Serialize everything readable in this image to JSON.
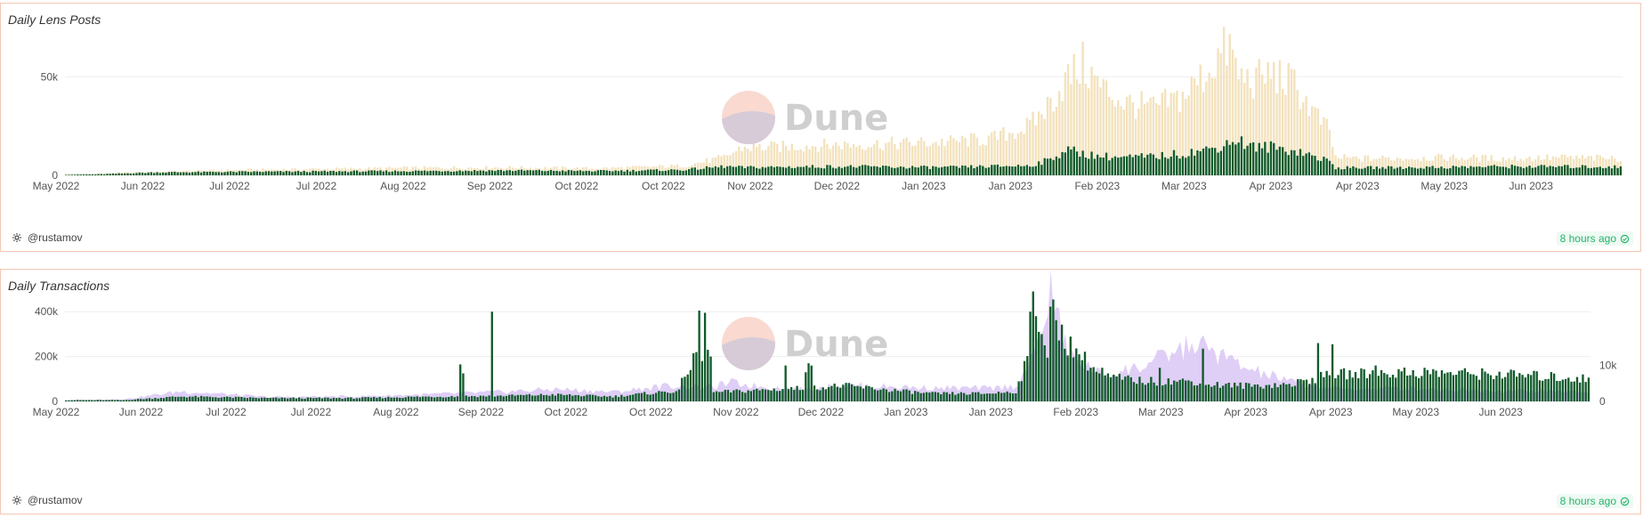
{
  "footer": {
    "author": "@rustamov",
    "updated": "8 hours ago"
  },
  "watermark": "Dune",
  "colors": {
    "green": "#0f5a2a",
    "cream": "#f3e2bd",
    "lavender": "#d9c5f5",
    "border": "#f3c7b4",
    "grid": "#eeeeee"
  },
  "chart_data": [
    {
      "type": "bar",
      "title": "Daily Lens Posts",
      "ylim": [
        0,
        70000
      ],
      "yticks": [
        {
          "value": 0,
          "label": "0"
        },
        {
          "value": 50000,
          "label": "50k"
        }
      ],
      "xtick_labels": [
        "May 2022",
        "Jun 2022",
        "Jul 2022",
        "Jul 2022",
        "Aug 2022",
        "Sep 2022",
        "Oct 2022",
        "Oct 2022",
        "Nov 2022",
        "Dec 2022",
        "Jan 2023",
        "Jan 2023",
        "Feb 2023",
        "Mar 2023",
        "Apr 2023",
        "Apr 2023",
        "May 2023",
        "Jun 2023"
      ],
      "start_date": "2022-05-18",
      "days": 411,
      "grid": true,
      "series": [
        {
          "kind": "bar",
          "color": "#f3e2bd",
          "anchors": [
            [
              0,
              500
            ],
            [
              10,
              800
            ],
            [
              30,
              1800
            ],
            [
              60,
              2800
            ],
            [
              120,
              3800
            ],
            [
              150,
              4000
            ],
            [
              180,
              3500
            ],
            [
              210,
              4800
            ],
            [
              224,
              9000
            ],
            [
              230,
              14000
            ],
            [
              245,
              14500
            ],
            [
              260,
              15500
            ],
            [
              280,
              16000
            ],
            [
              300,
              17000
            ],
            [
              315,
              18500
            ],
            [
              328,
              25000
            ],
            [
              334,
              35000
            ],
            [
              340,
              48000
            ],
            [
              346,
              56000
            ],
            [
              352,
              45000
            ],
            [
              360,
              37000
            ],
            [
              370,
              34000
            ],
            [
              380,
              40000
            ],
            [
              388,
              52000
            ],
            [
              392,
              60000
            ],
            [
              396,
              65000
            ],
            [
              399,
              50000
            ],
            [
              405,
              48000
            ],
            [
              410,
              52000
            ],
            [
              418,
              46000
            ],
            [
              424,
              33000
            ],
            [
              430,
              22000
            ],
            [
              432,
              9000
            ],
            [
              440,
              8500
            ],
            [
              470,
              9000
            ],
            [
              490,
              8500
            ],
            [
              510,
              9000
            ],
            [
              530,
              8500
            ]
          ]
        },
        {
          "kind": "bar",
          "color": "#0f5a2a",
          "anchors": [
            [
              0,
              300
            ],
            [
              10,
              500
            ],
            [
              30,
              1500
            ],
            [
              60,
              1800
            ],
            [
              120,
              2200
            ],
            [
              150,
              2500
            ],
            [
              180,
              2200
            ],
            [
              210,
              2800
            ],
            [
              224,
              4500
            ],
            [
              230,
              4000
            ],
            [
              260,
              4500
            ],
            [
              300,
              4000
            ],
            [
              328,
              5000
            ],
            [
              335,
              8000
            ],
            [
              340,
              13000
            ],
            [
              350,
              10000
            ],
            [
              360,
              9000
            ],
            [
              370,
              9500
            ],
            [
              380,
              11000
            ],
            [
              390,
              13500
            ],
            [
              398,
              18000
            ],
            [
              405,
              14000
            ],
            [
              410,
              14500
            ],
            [
              420,
              12000
            ],
            [
              430,
              7000
            ],
            [
              432,
              3800
            ],
            [
              460,
              4000
            ],
            [
              490,
              4500
            ],
            [
              530,
              4300
            ]
          ]
        }
      ]
    },
    {
      "type": "bar",
      "title": "Daily Transactions",
      "ylim": [
        0,
        500000
      ],
      "yticks": [
        {
          "value": 0,
          "label": "0"
        },
        {
          "value": 200000,
          "label": "200k"
        },
        {
          "value": 400000,
          "label": "400k"
        }
      ],
      "y2lim": [
        0,
        31000
      ],
      "y2ticks": [
        {
          "value": 0,
          "label": "0"
        },
        {
          "value": 10000,
          "label": "10k"
        }
      ],
      "xtick_labels": [
        "May 2022",
        "Jun 2022",
        "Jul 2022",
        "Jul 2022",
        "Aug 2022",
        "Sep 2022",
        "Oct 2022",
        "Oct 2022",
        "Nov 2022",
        "Dec 2022",
        "Jan 2023",
        "Jan 2023",
        "Feb 2023",
        "Mar 2023",
        "Apr 2023",
        "Apr 2023",
        "May 2023",
        "Jun 2023"
      ],
      "start_date": "2022-05-18",
      "days": 411,
      "grid": true,
      "series": [
        {
          "kind": "area",
          "axis": "right",
          "color": "#d9c5f5",
          "anchors": [
            [
              0,
              300
            ],
            [
              20,
              600
            ],
            [
              40,
              2800
            ],
            [
              70,
              1200
            ],
            [
              100,
              1400
            ],
            [
              120,
              1800
            ],
            [
              150,
              2600
            ],
            [
              170,
              3400
            ],
            [
              190,
              2600
            ],
            [
              210,
              4400
            ],
            [
              223,
              3800
            ],
            [
              231,
              5200
            ],
            [
              240,
              4200
            ],
            [
              255,
              3300
            ],
            [
              270,
              4500
            ],
            [
              300,
              3700
            ],
            [
              320,
              3600
            ],
            [
              330,
              4200
            ],
            [
              336,
              12000
            ],
            [
              342,
              30000
            ],
            [
              348,
              13000
            ],
            [
              360,
              7000
            ],
            [
              375,
              10000
            ],
            [
              392,
              16000
            ],
            [
              398,
              14000
            ],
            [
              410,
              9000
            ],
            [
              425,
              5500
            ],
            [
              440,
              3500
            ],
            [
              470,
              3600
            ],
            [
              500,
              3000
            ],
            [
              530,
              2700
            ]
          ]
        },
        {
          "kind": "bar",
          "color": "#0f5a2a",
          "anchors": [
            [
              0,
              6000
            ],
            [
              20,
              6000
            ],
            [
              40,
              22000
            ],
            [
              70,
              15000
            ],
            [
              100,
              15000
            ],
            [
              120,
              20000
            ],
            [
              150,
              25000
            ],
            [
              170,
              30000
            ],
            [
              190,
              22000
            ],
            [
              210,
              45000
            ],
            [
              225,
              40000
            ],
            [
              240,
              50000
            ],
            [
              258,
              60000
            ],
            [
              270,
              70000
            ],
            [
              300,
              35000
            ],
            [
              320,
              35000
            ],
            [
              330,
              45000
            ],
            [
              336,
              250000
            ],
            [
              342,
              400000
            ],
            [
              348,
              260000
            ],
            [
              360,
              110000
            ],
            [
              375,
              90000
            ],
            [
              392,
              90000
            ],
            [
              398,
              75000
            ],
            [
              410,
              70000
            ],
            [
              425,
              75000
            ],
            [
              440,
              120000
            ],
            [
              470,
              130000
            ],
            [
              500,
              120000
            ],
            [
              530,
              100000
            ]
          ],
          "spikes": [
            [
              137,
              165000
            ],
            [
              138,
              125000
            ],
            [
              148,
              400000
            ],
            [
              214,
              105000
            ],
            [
              215,
              110000
            ],
            [
              216,
              120000
            ],
            [
              217,
              140000
            ],
            [
              218,
              215000
            ],
            [
              219,
              220000
            ],
            [
              220,
              405000
            ],
            [
              221,
              180000
            ],
            [
              222,
              395000
            ],
            [
              223,
              230000
            ],
            [
              224,
              200000
            ],
            [
              250,
              160000
            ],
            [
              257,
              130000
            ],
            [
              258,
              170000
            ],
            [
              259,
              160000
            ],
            [
              335,
              400000
            ],
            [
              336,
              490000
            ],
            [
              337,
              380000
            ],
            [
              338,
              310000
            ],
            [
              339,
              300000
            ],
            [
              340,
              250000
            ],
            [
              341,
              195000
            ],
            [
              352,
              210000
            ],
            [
              360,
              150000
            ],
            [
              380,
              150000
            ],
            [
              395,
              235000
            ],
            [
              435,
              260000
            ],
            [
              440,
              255000
            ],
            [
              455,
              160000
            ]
          ]
        }
      ]
    }
  ]
}
